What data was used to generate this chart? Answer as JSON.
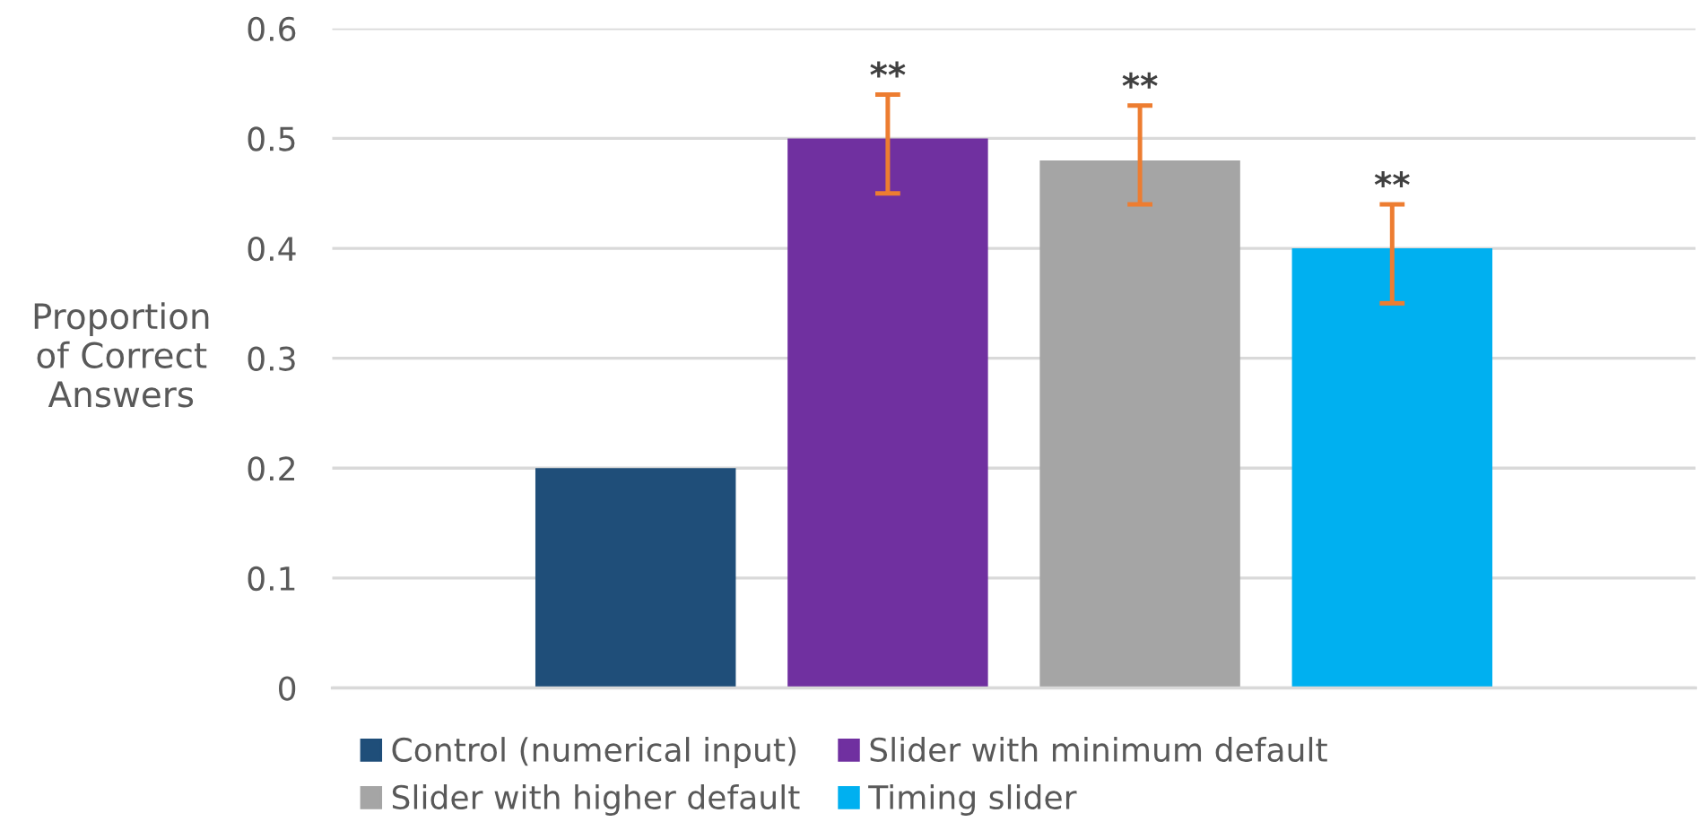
{
  "chart_data": {
    "type": "bar",
    "ylabel": "Proportion\nof Correct\nAnswers",
    "categories": [
      null
    ],
    "series": [
      {
        "name": "Control (numerical input)",
        "color": "#1f4e79",
        "values": [
          0.2
        ]
      },
      {
        "name": "Slider with minimum default",
        "color": "#7030a0",
        "values": [
          0.5
        ],
        "errors": [
          [
            0.45,
            0.54
          ]
        ],
        "value_labels": [
          "**"
        ]
      },
      {
        "name": "Slider with higher default",
        "color": "#a5a5a5",
        "values": [
          0.48
        ],
        "errors": [
          [
            0.44,
            0.53
          ]
        ],
        "value_labels": [
          "**"
        ]
      },
      {
        "name": "Timing slider",
        "color": "#00b0f0",
        "values": [
          0.4
        ],
        "errors": [
          [
            0.35,
            0.44
          ]
        ],
        "value_labels": [
          "**"
        ]
      }
    ],
    "ylim": [
      0,
      0.6
    ],
    "yticks": [
      0,
      0.1,
      0.2,
      0.3,
      0.4,
      0.5,
      0.6
    ],
    "grid": "y",
    "legend": "bottom"
  }
}
